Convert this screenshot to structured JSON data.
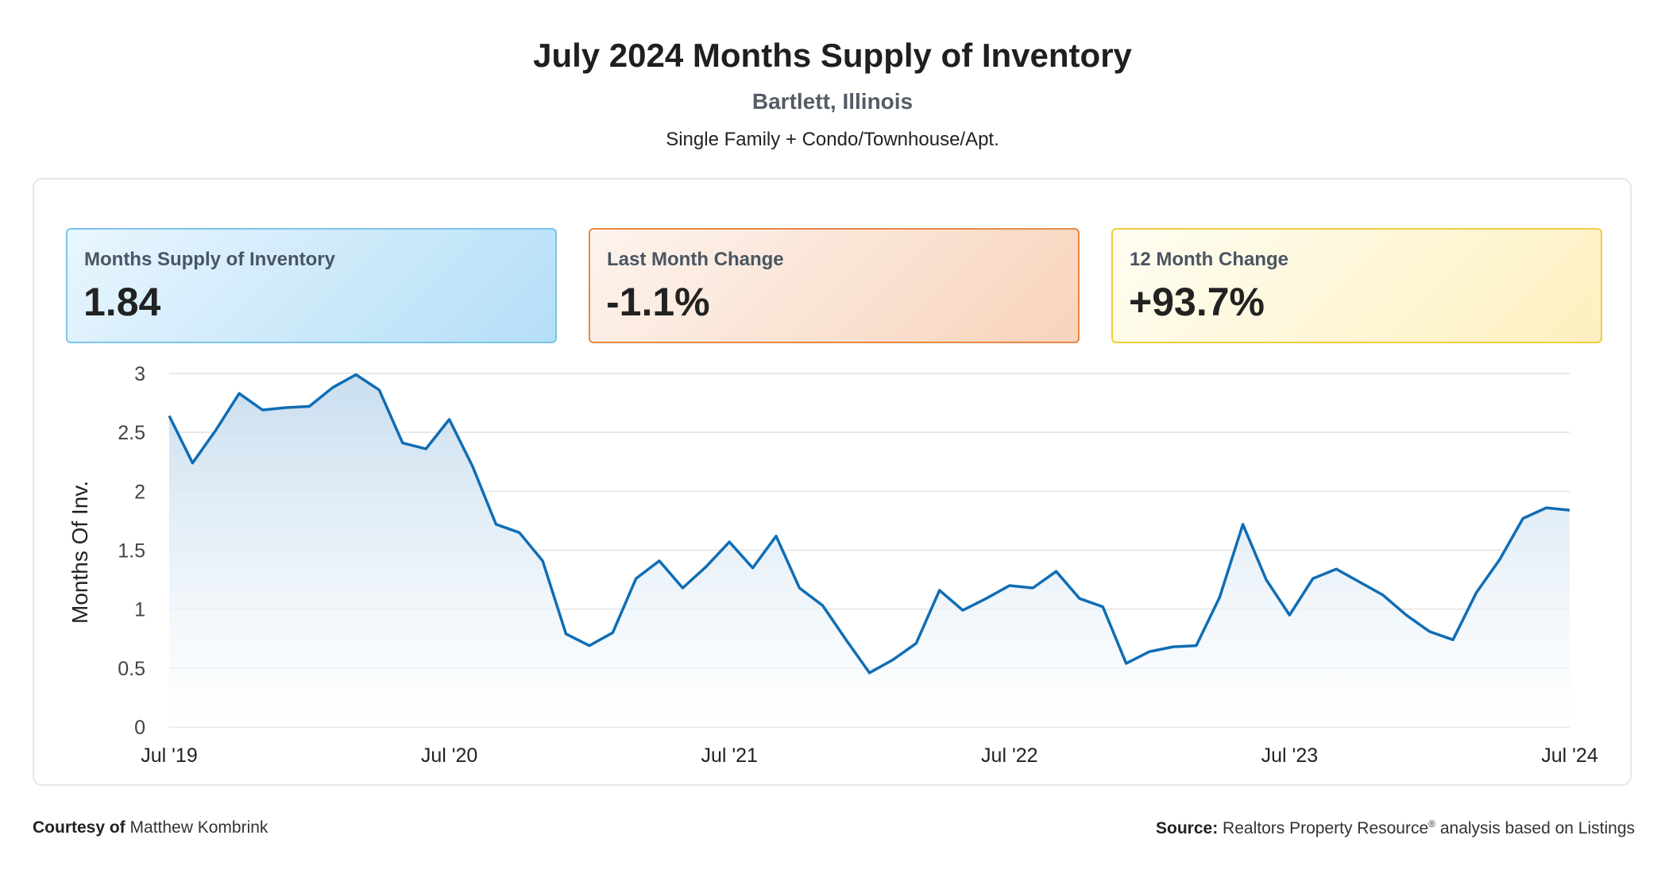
{
  "header": {
    "title": "July 2024 Months Supply of Inventory",
    "subtitle": "Bartlett, Illinois",
    "property_types": "Single Family + Condo/Townhouse/Apt."
  },
  "kpis": [
    {
      "label": "Months Supply of Inventory",
      "value": "1.84",
      "color": "#7cc4ec"
    },
    {
      "label": "Last Month Change",
      "value": "-1.1%",
      "color": "#e48a45"
    },
    {
      "label": "12 Month Change",
      "value": "+93.7%",
      "color": "#f0cd3c"
    }
  ],
  "chart_data": {
    "type": "area",
    "ylabel": "Months Of Inv.",
    "ylim": [
      0,
      3
    ],
    "yticks": [
      "0",
      "0.5",
      "1",
      "1.5",
      "2",
      "2.5",
      "3"
    ],
    "xticks": [
      "Jul '19",
      "Jul '20",
      "Jul '21",
      "Jul '22",
      "Jul '23",
      "Jul '24"
    ],
    "grid": true,
    "line_color": "#0f6db5",
    "x_start": "2019-07",
    "x_end": "2024-07",
    "series": [
      {
        "values": [
          2.64,
          2.24,
          2.52,
          2.83,
          2.69,
          2.71,
          2.72,
          2.88,
          2.99,
          2.86,
          2.41,
          2.36,
          2.61,
          2.21,
          1.72,
          1.65,
          1.41,
          0.79,
          0.69,
          0.8,
          1.26,
          1.41,
          1.18,
          1.36,
          1.57,
          1.35,
          1.62,
          1.18,
          1.03,
          0.74,
          0.46,
          0.57,
          0.71,
          1.16,
          0.99,
          1.09,
          1.2,
          1.18,
          1.32,
          1.09,
          1.02,
          0.54,
          0.64,
          0.68,
          0.69,
          1.1,
          1.72,
          1.25,
          0.95,
          1.26,
          1.34,
          1.23,
          1.12,
          0.95,
          0.81,
          0.74,
          1.14,
          1.42,
          1.77,
          1.86,
          1.84
        ]
      }
    ]
  },
  "footer": {
    "courtesy_label": "Courtesy of",
    "courtesy_name": "Matthew Kombrink",
    "source_label": "Source:",
    "source_text": "Realtors Property Resource",
    "source_mark": "®",
    "source_suffix": "analysis based on Listings"
  }
}
